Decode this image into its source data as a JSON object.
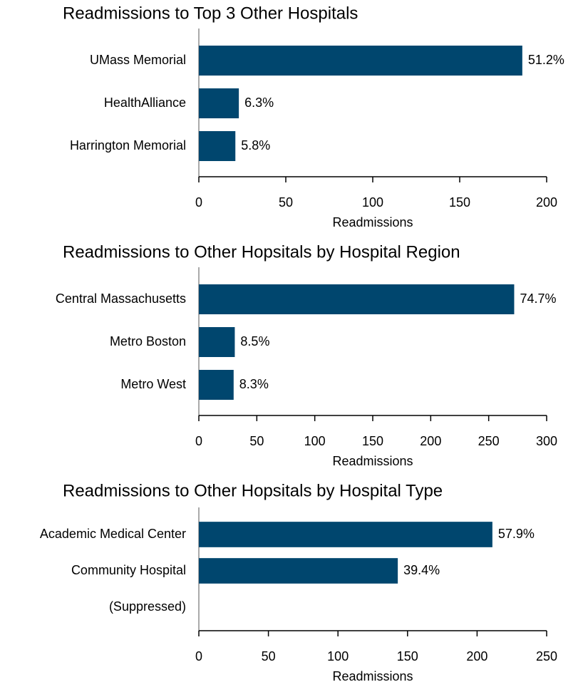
{
  "chart_data": [
    {
      "type": "barh",
      "title": "Readmissions to Top 3 Other Hospitals",
      "xlabel": "Readmissions",
      "categories": [
        "UMass Memorial",
        "HealthAlliance",
        "Harrington Memorial"
      ],
      "values": [
        186,
        23,
        21
      ],
      "value_labels": [
        "51.2%",
        "6.3%",
        "5.8%"
      ],
      "color": "#00466e",
      "xlim": [
        0,
        200
      ],
      "xticks": [
        0,
        50,
        100,
        150,
        200
      ]
    },
    {
      "type": "barh",
      "title": "Readmissions to Other Hopsitals by Hospital Region",
      "xlabel": "Readmissions",
      "categories": [
        "Central Massachusetts",
        "Metro Boston",
        "Metro West"
      ],
      "values": [
        272,
        31,
        30
      ],
      "value_labels": [
        "74.7%",
        "8.5%",
        "8.3%"
      ],
      "color": "#00466e",
      "xlim": [
        0,
        300
      ],
      "xticks": [
        0,
        50,
        100,
        150,
        200,
        250,
        300
      ]
    },
    {
      "type": "barh",
      "title": "Readmissions to Other Hopsitals by Hospital Type",
      "xlabel": "Readmissions",
      "categories": [
        "Academic Medical Center",
        "Community Hospital",
        "(Suppressed)"
      ],
      "values": [
        211,
        143,
        null
      ],
      "value_labels": [
        "57.9%",
        "39.4%",
        null
      ],
      "color": "#00466e",
      "xlim": [
        0,
        250
      ],
      "xticks": [
        0,
        50,
        100,
        150,
        200,
        250
      ]
    }
  ]
}
